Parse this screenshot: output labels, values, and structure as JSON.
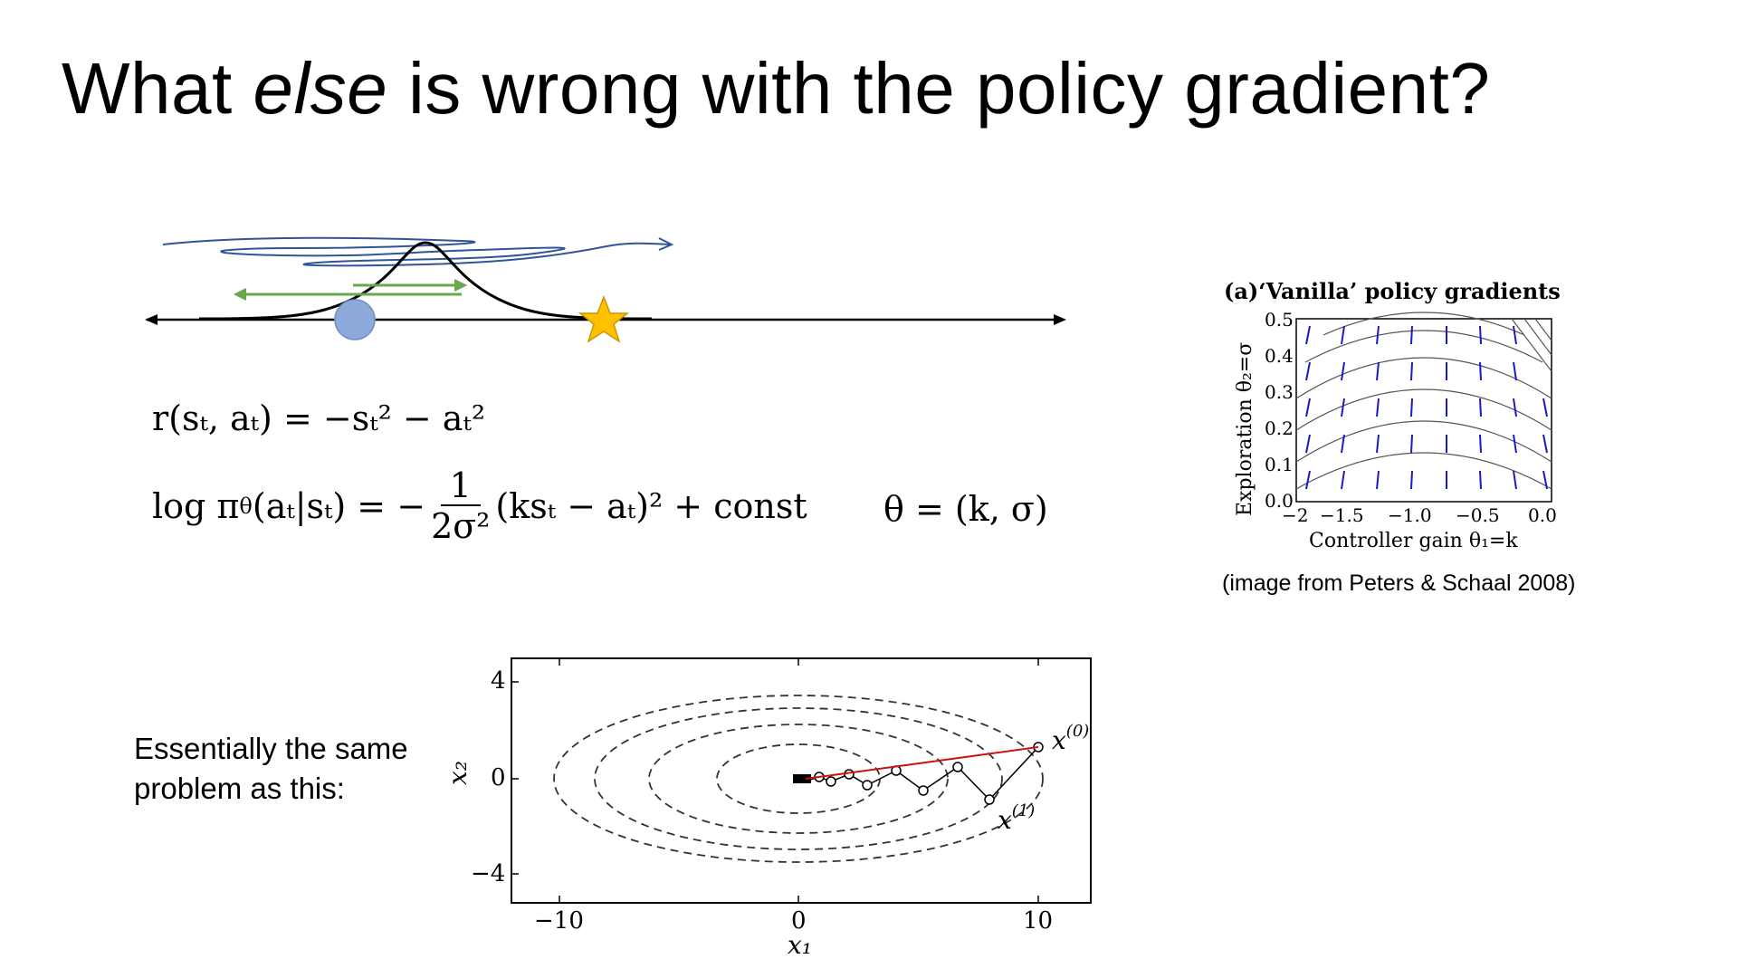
{
  "slide": {
    "title_pre": "What ",
    "title_em": "else",
    "title_post": " is wrong with the policy gradient?",
    "eq_reward": "r(sₜ, aₜ) = −sₜ² − aₜ²",
    "eq_policy_lhs": "log π",
    "eq_policy_sub": "θ",
    "eq_policy_mid": "(aₜ|sₜ) = −",
    "eq_frac_num": "1",
    "eq_frac_den": "2σ²",
    "eq_policy_rhs": "(ksₜ − aₜ)² + const",
    "eq_theta": "θ = (k, σ)",
    "side_line1": "Essentially the same",
    "side_line2": "problem as this:",
    "caption": "(image from Peters & Schaal 2008)"
  },
  "vanilla_plot": {
    "title": "(a)‘Vanilla’ policy gradients",
    "ylabel": "Exploration θ₂=σ",
    "xlabel": "Controller gain θ₁=k",
    "yticks": [
      "0.5",
      "0.4",
      "0.3",
      "0.2",
      "0.1",
      "0.0"
    ],
    "xticks": [
      "−2",
      "−1.5",
      "−1.0",
      "−0.5",
      "0.0"
    ],
    "arrow_color": "#1a1acc"
  },
  "contour_plot": {
    "ylabel": "x₂",
    "xlabel": "x₁",
    "yticks": [
      "4",
      "0",
      "−4"
    ],
    "xticks": [
      "−10",
      "0",
      "10"
    ],
    "label_x0": "x",
    "label_x0_sup": "(0)",
    "label_x1": "x",
    "label_x1_sup": "(1)",
    "path_color": "#cc1111"
  },
  "colors": {
    "arrow_green": "#6aa84f",
    "scribble_blue": "#2f5597",
    "ball": "#8ea9db",
    "star": "#ffc000"
  }
}
